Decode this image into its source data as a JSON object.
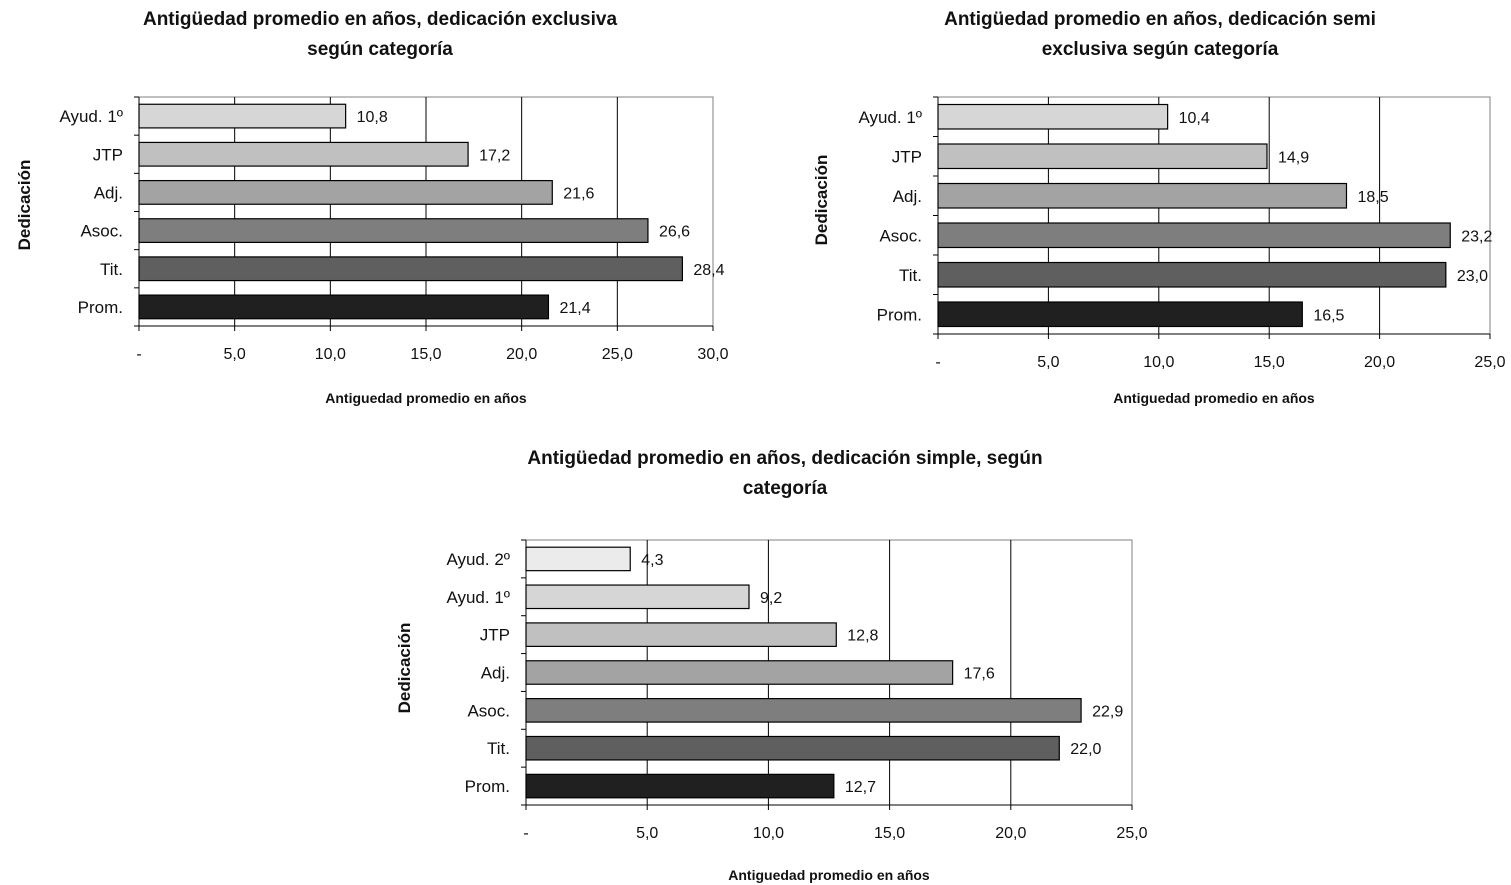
{
  "chart_data": [
    {
      "type": "bar",
      "orientation": "horizontal",
      "title": "Antigüedad promedio en años, dedicación exclusiva según categoría",
      "title_lines": [
        "Antigüedad promedio en años, dedicación exclusiva",
        "según categoría"
      ],
      "xlabel": "Antiguedad promedio en años",
      "ylabel": "Dedicación",
      "categories": [
        "Ayud. 1º",
        "JTP",
        "Adj.",
        "Asoc.",
        "Tit.",
        "Prom."
      ],
      "values": [
        10.8,
        17.2,
        21.6,
        26.6,
        28.4,
        21.4
      ],
      "value_labels": [
        "10,8",
        "17,2",
        "21,6",
        "26,6",
        "28,4",
        "21,4"
      ],
      "bar_colors": [
        "#d6d6d6",
        "#c0c0c0",
        "#a3a3a3",
        "#7e7e7e",
        "#5f5f5f",
        "#202020"
      ],
      "xlim": [
        0,
        30
      ],
      "xticks": [
        0,
        5,
        10,
        15,
        20,
        25,
        30
      ],
      "xtick_labels": [
        "-",
        "5,0",
        "10,0",
        "15,0",
        "20,0",
        "25,0",
        "30,0"
      ],
      "grid": true,
      "legend": "none"
    },
    {
      "type": "bar",
      "orientation": "horizontal",
      "title": "Antigüedad promedio en años, dedicación semi exclusiva según categoría",
      "title_lines": [
        "Antigüedad promedio en años, dedicación semi",
        "exclusiva según categoría"
      ],
      "xlabel": "Antiguedad promedio en años",
      "ylabel": "Dedicación",
      "categories": [
        "Ayud. 1º",
        "JTP",
        "Adj.",
        "Asoc.",
        "Tit.",
        "Prom."
      ],
      "values": [
        10.4,
        14.9,
        18.5,
        23.2,
        23.0,
        16.5
      ],
      "value_labels": [
        "10,4",
        "14,9",
        "18,5",
        "23,2",
        "23,0",
        "16,5"
      ],
      "bar_colors": [
        "#d6d6d6",
        "#c0c0c0",
        "#a3a3a3",
        "#7e7e7e",
        "#5f5f5f",
        "#202020"
      ],
      "xlim": [
        0,
        25
      ],
      "xticks": [
        0,
        5,
        10,
        15,
        20,
        25
      ],
      "xtick_labels": [
        "-",
        "5,0",
        "10,0",
        "15,0",
        "20,0",
        "25,0"
      ],
      "grid": true,
      "legend": "none"
    },
    {
      "type": "bar",
      "orientation": "horizontal",
      "title": "Antigüedad promedio en años, dedicación simple, según categoría",
      "title_lines": [
        "Antigüedad promedio en años, dedicación simple, según",
        "categoría"
      ],
      "xlabel": "Antiguedad promedio en años",
      "ylabel": "Dedicación",
      "categories": [
        "Ayud. 2º",
        "Ayud. 1º",
        "JTP",
        "Adj.",
        "Asoc.",
        "Tit.",
        "Prom."
      ],
      "values": [
        4.3,
        9.2,
        12.8,
        17.6,
        22.9,
        22.0,
        12.7
      ],
      "value_labels": [
        "4,3",
        "9,2",
        "12,8",
        "17,6",
        "22,9",
        "22,0",
        "12,7"
      ],
      "bar_colors": [
        "#ebebeb",
        "#d6d6d6",
        "#c0c0c0",
        "#a3a3a3",
        "#7e7e7e",
        "#5f5f5f",
        "#202020"
      ],
      "xlim": [
        0,
        25
      ],
      "xticks": [
        0,
        5,
        10,
        15,
        20,
        25
      ],
      "xtick_labels": [
        "-",
        "5,0",
        "10,0",
        "15,0",
        "20,0",
        "25,0"
      ],
      "grid": true,
      "legend": "none"
    }
  ]
}
